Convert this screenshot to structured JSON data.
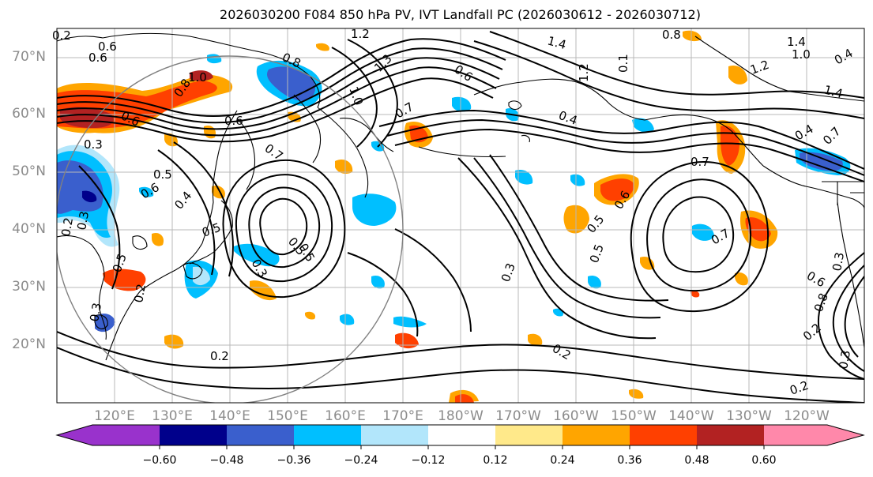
{
  "title": "2026030200 F084 850 hPa PV, IVT Landfall PC (2026030612 - 2026030712)",
  "lat_labels": [
    "70°N",
    "60°N",
    "50°N",
    "40°N",
    "30°N",
    "20°N"
  ],
  "lon_labels": [
    "120°E",
    "130°E",
    "140°E",
    "150°E",
    "160°E",
    "170°E",
    "180°W",
    "170°W",
    "160°W",
    "150°W",
    "140°W",
    "130°W",
    "120°W"
  ],
  "colorbar": {
    "levels": [
      "−0.60",
      "−0.48",
      "−0.36",
      "−0.24",
      "−0.12",
      "0.12",
      "0.24",
      "0.36",
      "0.48",
      "0.60"
    ],
    "colors": [
      "#9932cc",
      "#00008b",
      "#3a5fcd",
      "#00bfff",
      "#b2e6fb",
      "#ffffff",
      "#ffe98a",
      "#ffa500",
      "#ff4000",
      "#b22222",
      "#ff88aa"
    ]
  },
  "contour_labels": [
    "0.6",
    "1.0",
    "0.8",
    "0.6",
    "0.3",
    "0.5",
    "0.6",
    "0.4",
    "0.2",
    "0.3",
    "0.5",
    "0.7",
    "0.6",
    "0.8",
    "1.0",
    "1.2",
    "1.3",
    "1.4",
    "0.8",
    "1.2",
    "0.1",
    "0.7",
    "0.6",
    "0.5",
    "0.3",
    "0.3",
    "0.5",
    "0.6",
    "0.7",
    "0.2",
    "0.2",
    "0.7",
    "0.4",
    "1.2",
    "1.4",
    "1.4",
    "0.7",
    "0.5",
    "0.3",
    "0.6",
    "0.8",
    "0.2",
    "0.3",
    "0.2",
    "0.3",
    "0.2",
    "0.5",
    "0.4",
    "1.0",
    "0.4",
    "0.2",
    "0.5",
    "0.6"
  ]
}
